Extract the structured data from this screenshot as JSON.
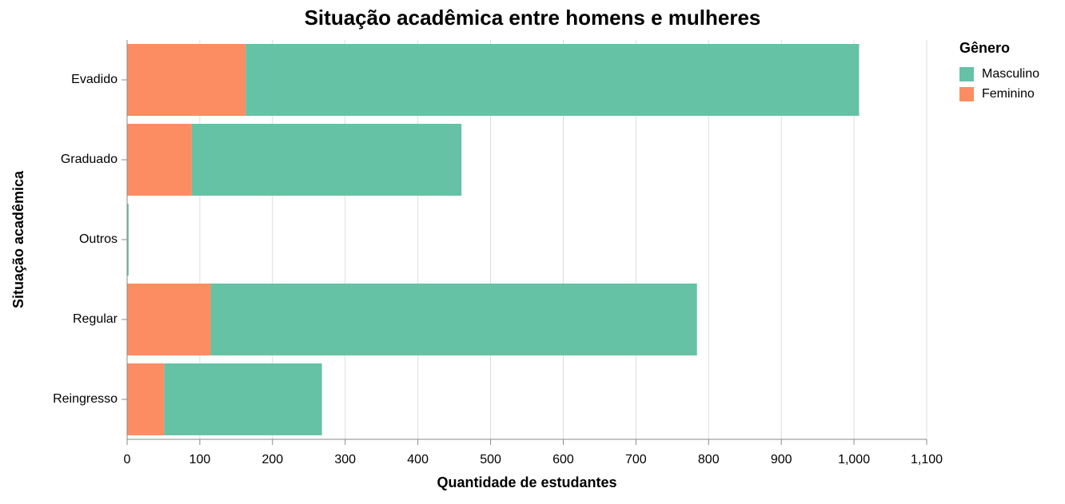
{
  "chart_data": {
    "type": "stacked-bar-horizontal",
    "title": "Situação acadêmica entre homens e mulheres",
    "x_label": "Quantidade de estudantes",
    "y_label": "Situação acadêmica",
    "legend_title": "Gênero",
    "legend_position": "right",
    "grid": true,
    "categories": [
      "Evadido",
      "Graduado",
      "Outros",
      "Regular",
      "Reingresso"
    ],
    "series": [
      {
        "name": "Masculino",
        "color": "#66c2a5",
        "values": [
          844,
          371,
          2,
          669,
          217
        ]
      },
      {
        "name": "Feminino",
        "color": "#fc8d62",
        "values": [
          163,
          89,
          0,
          115,
          51
        ]
      }
    ],
    "xlim": [
      0,
      1100
    ],
    "xticks": [
      0,
      100,
      200,
      300,
      400,
      500,
      600,
      700,
      800,
      900,
      {
        "value": 1000,
        "label": "1,000"
      },
      {
        "value": 1100,
        "label": "1,100"
      }
    ]
  }
}
